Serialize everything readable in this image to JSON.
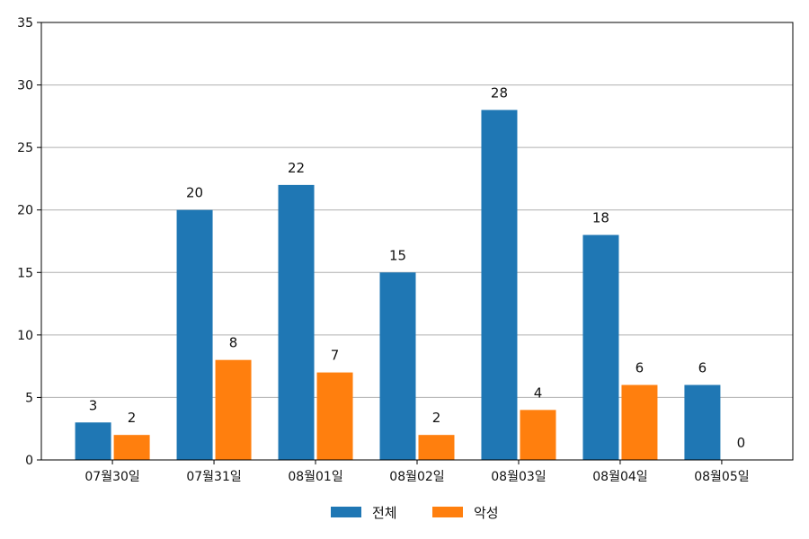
{
  "chart_data": {
    "type": "bar",
    "categories": [
      "07월30일",
      "07월31일",
      "08월01일",
      "08월02일",
      "08월03일",
      "08월04일",
      "08월05일"
    ],
    "series": [
      {
        "name": "전체",
        "color": "#1f77b4",
        "values": [
          3,
          20,
          22,
          15,
          28,
          18,
          6
        ]
      },
      {
        "name": "악성",
        "color": "#ff7f0e",
        "values": [
          2,
          8,
          7,
          2,
          4,
          6,
          0
        ]
      }
    ],
    "ylim": [
      0,
      35
    ],
    "yticks": [
      "0",
      "5",
      "10",
      "15",
      "20",
      "25",
      "30",
      "35"
    ],
    "grid": "horizontal",
    "legend_position": "bottom-center",
    "show_data_labels": true
  }
}
